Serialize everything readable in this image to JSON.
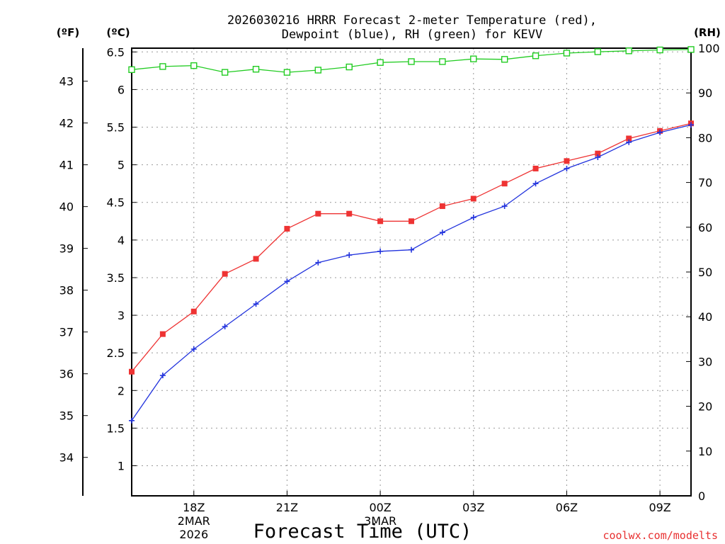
{
  "chart_data": {
    "type": "line",
    "title_line1": "2026030216 HRRR Forecast 2-meter Temperature (red),",
    "title_line2": "Dewpoint (blue), RH (green) for KEVV",
    "xlabel": "Forecast Time (UTC)",
    "credit": "coolwx.com/modelts",
    "units": {
      "fahrenheit": "(ºF)",
      "celsius": "(ºC)",
      "rh": "(RH)"
    },
    "x_range": [
      16,
      34
    ],
    "x_ticks": [
      {
        "x": 18,
        "lines": [
          "18Z",
          "2MAR",
          "2026"
        ]
      },
      {
        "x": 21,
        "lines": [
          "21Z"
        ]
      },
      {
        "x": 24,
        "lines": [
          "00Z",
          "3MAR"
        ]
      },
      {
        "x": 27,
        "lines": [
          "03Z"
        ]
      },
      {
        "x": 30,
        "lines": [
          "06Z"
        ]
      },
      {
        "x": 33,
        "lines": [
          "09Z"
        ]
      }
    ],
    "y_celsius": {
      "range": [
        0.6,
        6.55
      ],
      "ticks": [
        1,
        1.5,
        2,
        2.5,
        3,
        3.5,
        4,
        4.5,
        5,
        5.5,
        6,
        6.5
      ]
    },
    "y_fahrenheit": {
      "ticks": [
        34,
        35,
        36,
        37,
        38,
        39,
        40,
        41,
        42,
        43
      ]
    },
    "y_rh": {
      "range": [
        0,
        100
      ],
      "ticks": [
        0,
        10,
        20,
        30,
        40,
        50,
        60,
        70,
        80,
        90,
        100
      ]
    },
    "x": [
      16,
      17,
      18,
      19,
      20,
      21,
      22,
      23,
      24,
      25,
      26,
      27,
      28,
      29,
      30,
      31,
      32,
      33,
      34
    ],
    "series": [
      {
        "name": "Temperature",
        "axis": "celsius",
        "color": "#ee3333",
        "marker": "filled-square",
        "values": [
          2.25,
          2.75,
          3.05,
          3.55,
          3.75,
          4.15,
          4.35,
          4.35,
          4.25,
          4.25,
          4.45,
          4.55,
          4.75,
          4.95,
          5.05,
          5.15,
          5.35,
          5.45,
          5.55
        ]
      },
      {
        "name": "Dewpoint",
        "axis": "celsius",
        "color": "#2233dd",
        "marker": "plus",
        "values": [
          1.6,
          2.2,
          2.55,
          2.85,
          3.15,
          3.45,
          3.7,
          3.8,
          3.85,
          3.87,
          4.1,
          4.3,
          4.45,
          4.75,
          4.95,
          5.1,
          5.3,
          5.43,
          5.53
        ]
      },
      {
        "name": "RH",
        "axis": "rh",
        "color": "#22cc22",
        "marker": "open-square",
        "values": [
          95.2,
          95.9,
          96.1,
          94.6,
          95.3,
          94.6,
          95.1,
          95.8,
          96.8,
          97.0,
          97.0,
          97.6,
          97.5,
          98.3,
          98.9,
          99.2,
          99.4,
          99.6,
          99.7
        ]
      }
    ]
  }
}
